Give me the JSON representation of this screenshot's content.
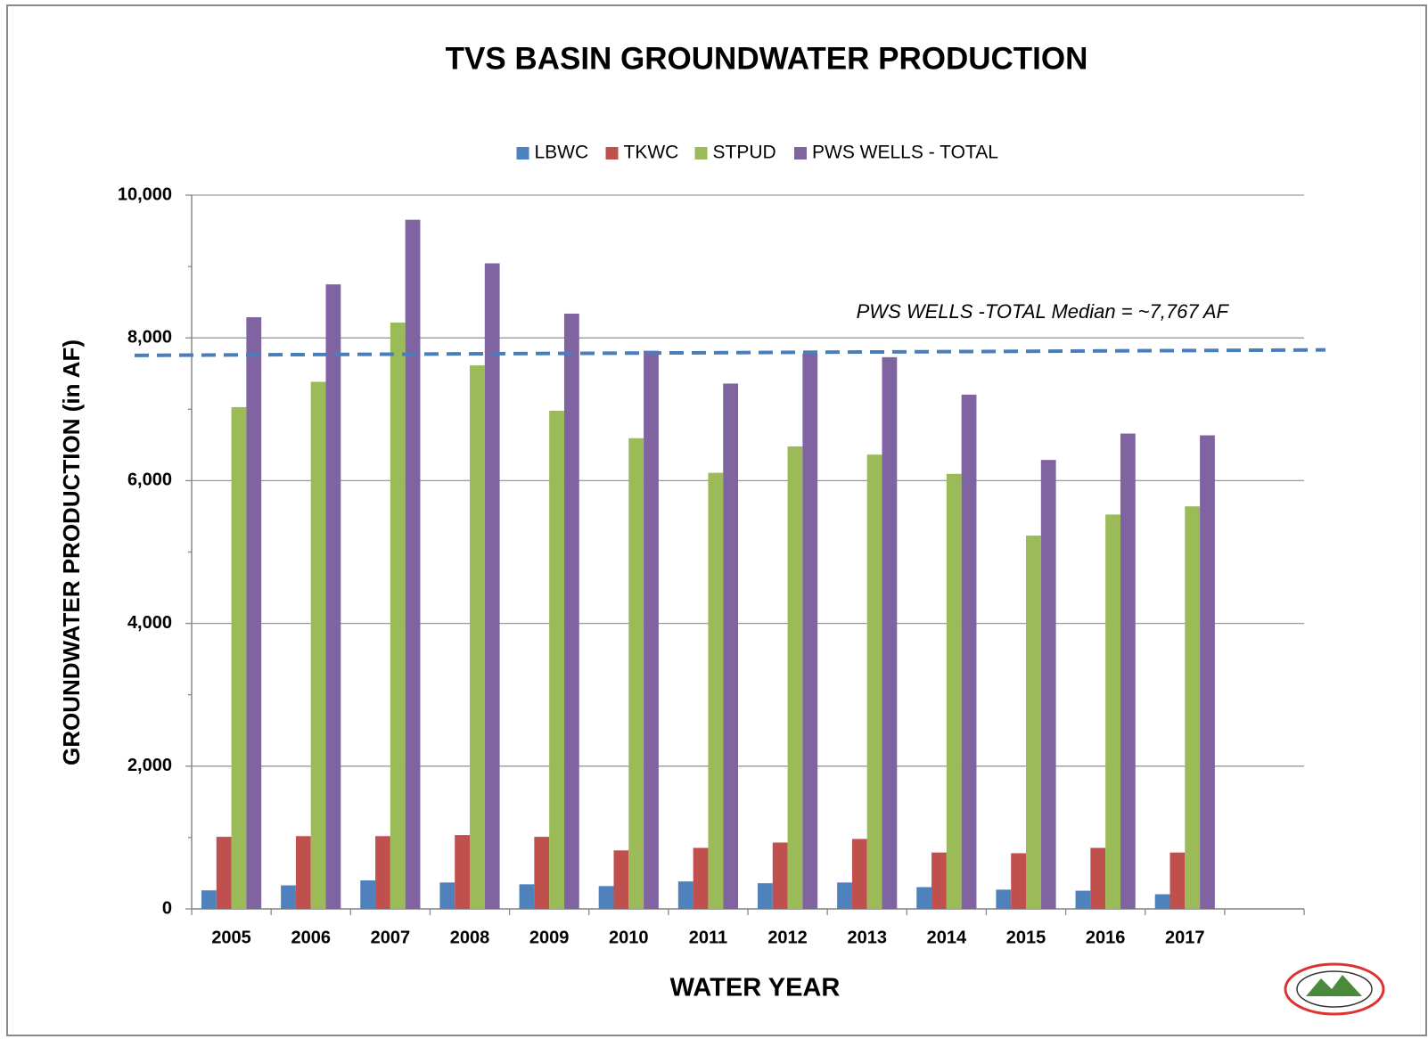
{
  "chart_data": {
    "type": "bar",
    "title": "TVS BASIN GROUNDWATER PRODUCTION",
    "x_label": "WATER YEAR",
    "y_label": "GROUNDWATER PRODUCTION (in AF)",
    "categories": [
      "2005",
      "2006",
      "2007",
      "2008",
      "2009",
      "2010",
      "2011",
      "2012",
      "2013",
      "2014",
      "2015",
      "2016",
      "2017",
      null
    ],
    "series": [
      {
        "name": "LBWC",
        "color": "#4f81bd",
        "values": [
          260,
          330,
          400,
          370,
          345,
          320,
          385,
          360,
          370,
          305,
          270,
          255,
          205,
          null
        ]
      },
      {
        "name": "TKWC",
        "color": "#c0504d",
        "values": [
          1010,
          1020,
          1020,
          1035,
          1010,
          820,
          855,
          930,
          980,
          790,
          780,
          855,
          790,
          null
        ]
      },
      {
        "name": "STPUD",
        "color": "#9bbb59",
        "values": [
          7030,
          7385,
          8215,
          7615,
          6980,
          6595,
          6110,
          6480,
          6365,
          6095,
          5230,
          5525,
          5640,
          null
        ]
      },
      {
        "name": "PWS WELLS - TOTAL",
        "color": "#8064a2",
        "values": [
          8290,
          8750,
          9655,
          9045,
          8340,
          7820,
          7360,
          7780,
          7730,
          7205,
          6290,
          6660,
          6635,
          null
        ]
      }
    ],
    "ylim": [
      0,
      10000
    ],
    "yticks": [
      0,
      {
        "value": 2000,
        "label": "2,000"
      },
      {
        "value": 4000,
        "label": "4,000"
      },
      {
        "value": 6000,
        "label": "6,000"
      },
      {
        "value": 8000,
        "label": "8,000"
      },
      {
        "value": 10000,
        "label": "10,000"
      }
    ],
    "minor_yticks": [
      1000,
      3000,
      5000,
      7000,
      9000
    ],
    "grid": true,
    "legend": "top",
    "median_line": {
      "label": "PWS WELLS -TOTAL Median = ~7,767 AF",
      "start": 7755,
      "end": 7832,
      "color": "#4a7ebb"
    }
  }
}
